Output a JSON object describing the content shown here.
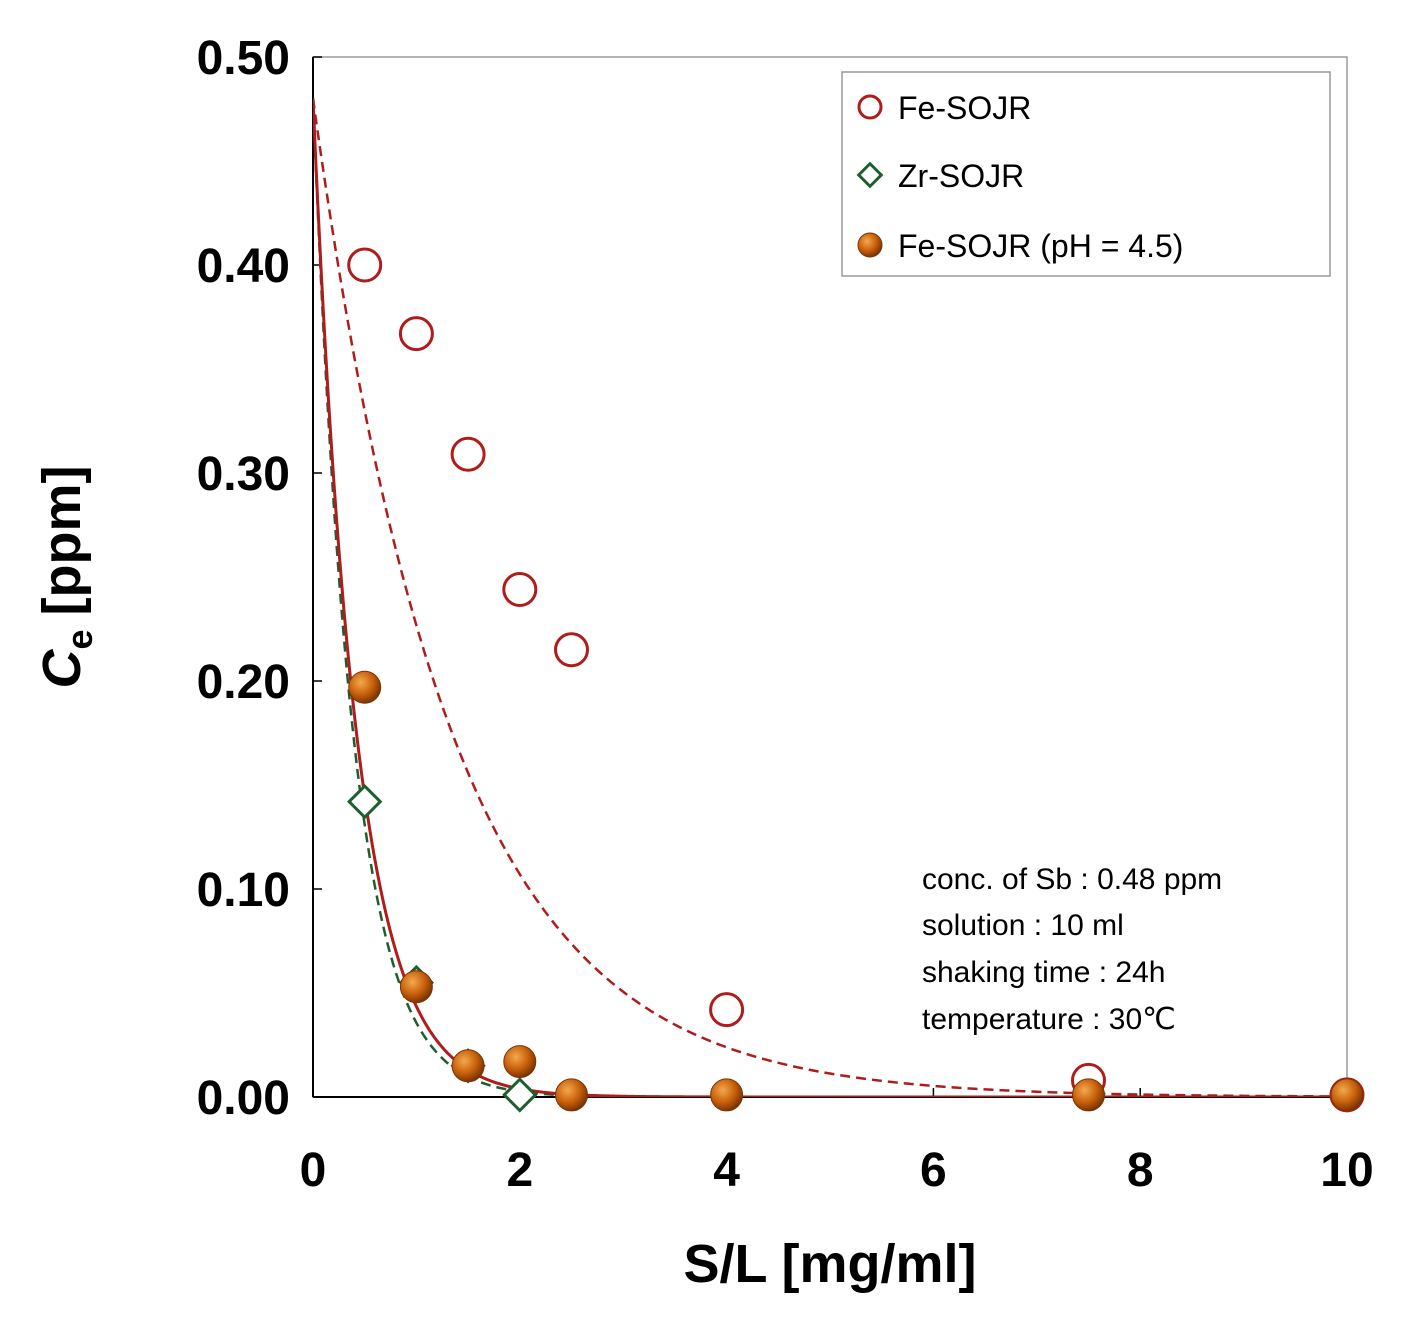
{
  "chart_data": {
    "type": "scatter",
    "xlabel": "S/L [mg/ml]",
    "ylabel": {
      "symbol": "C",
      "subscript": "e",
      "unit": "[ppm]"
    },
    "xlim": [
      0,
      10
    ],
    "ylim": [
      0,
      0.5
    ],
    "x_ticks": [
      "0",
      "2",
      "4",
      "6",
      "8",
      "10"
    ],
    "y_ticks": [
      "0.00",
      "0.10",
      "0.20",
      "0.30",
      "0.40",
      "0.50"
    ],
    "legend_position": "top-right",
    "series": [
      {
        "name": "Fe-SOJR",
        "marker": "open-circle",
        "color": "#b01c1c",
        "x": [
          0.5,
          1.0,
          1.5,
          2.0,
          2.5,
          4.0,
          7.5,
          10.0
        ],
        "y": [
          0.4,
          0.367,
          0.309,
          0.244,
          0.215,
          0.042,
          0.008,
          0.001
        ],
        "fit": {
          "style": "dashed",
          "color": "#b01c1c",
          "c0": 0.48,
          "k": 0.75
        }
      },
      {
        "name": "Zr-SOJR",
        "marker": "open-diamond",
        "color": "#1e5e2e",
        "x": [
          0.5,
          1.0,
          1.5,
          2.0
        ],
        "y": [
          0.142,
          0.055,
          0.015,
          0.001
        ],
        "fit": {
          "style": "dashed",
          "color": "#1e5e2e",
          "c0": 0.48,
          "k": 2.6
        }
      },
      {
        "name": "Fe-SOJR (pH = 4.5)",
        "marker": "filled-circle",
        "color": "#c8600a",
        "x": [
          0.5,
          1.0,
          1.5,
          2.0,
          2.5,
          4.0,
          7.5,
          10.0
        ],
        "y": [
          0.197,
          0.053,
          0.015,
          0.017,
          0.001,
          0.001,
          0.001,
          0.001
        ],
        "fit": {
          "style": "solid",
          "color": "#b01c1c",
          "c0": 0.48,
          "k": 2.4
        }
      }
    ],
    "annotations": [
      "conc. of Sb : 0.48 ppm",
      "solution : 10 ml",
      "shaking time : 24h",
      "temperature : 30℃"
    ]
  }
}
